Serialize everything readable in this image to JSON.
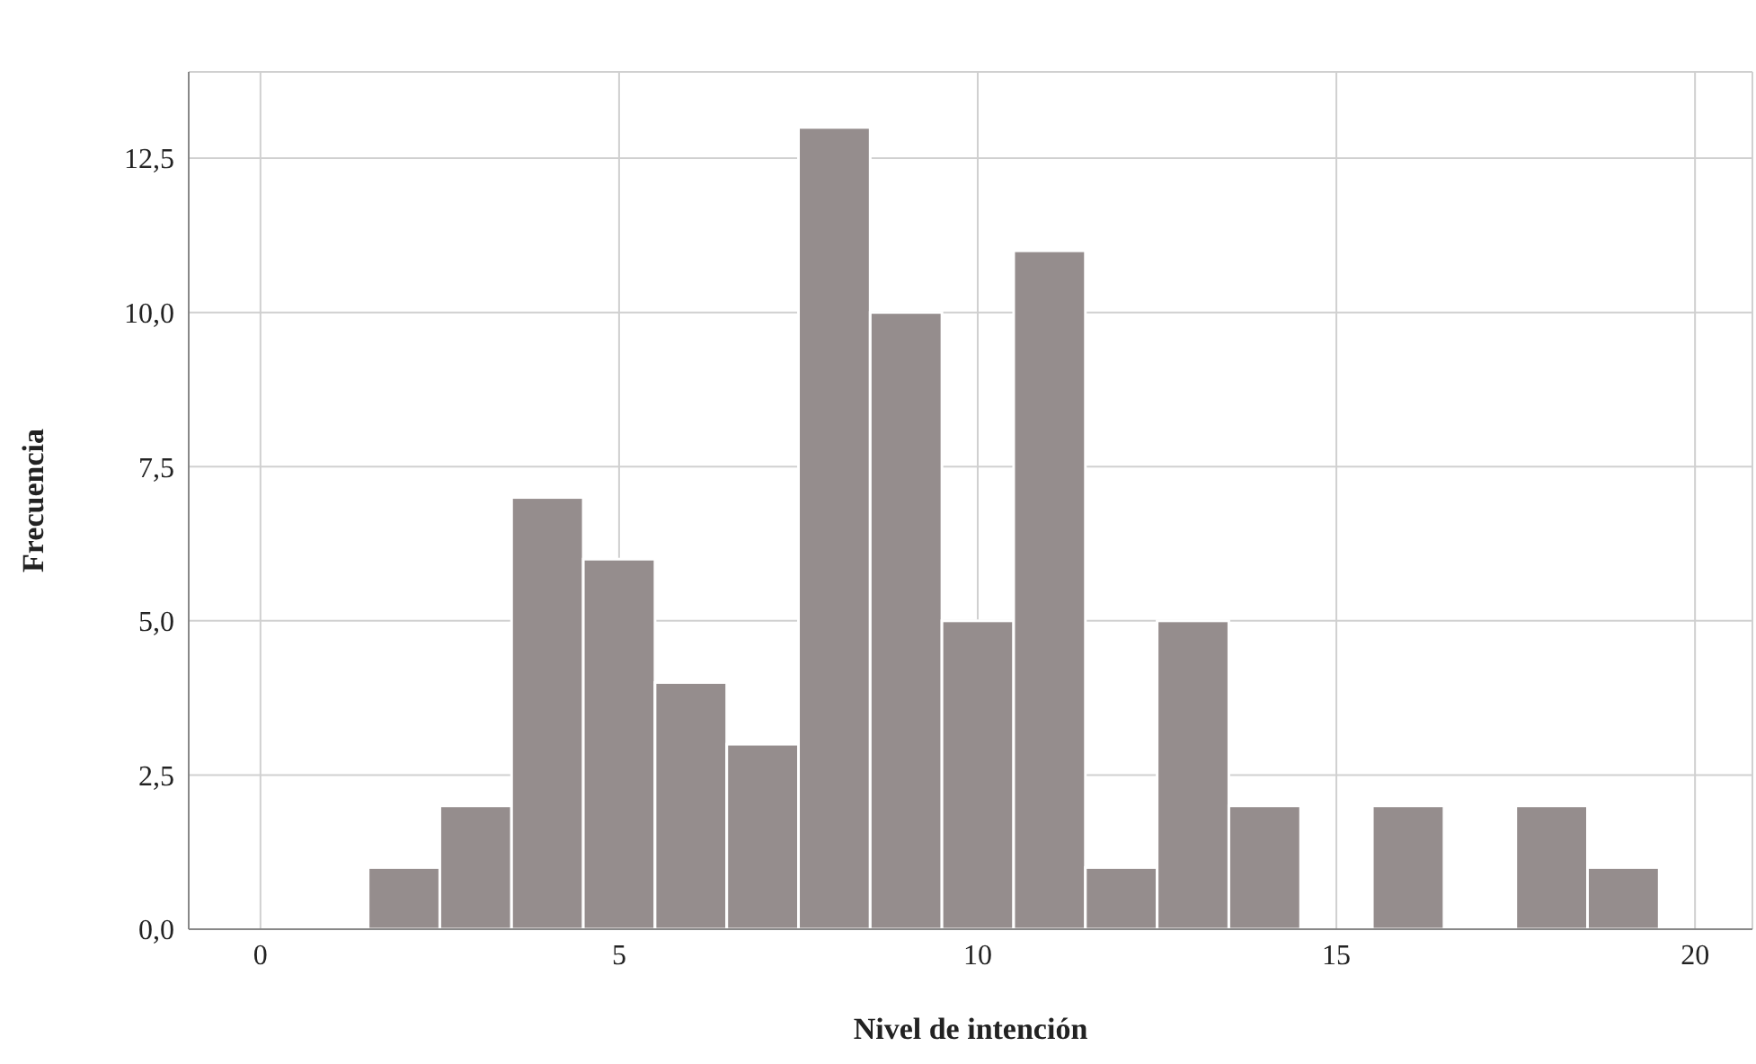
{
  "chart_data": {
    "type": "histogram",
    "xlabel": "Nivel de intención",
    "ylabel": "Frecuencia",
    "bins": [
      1.5,
      2.5,
      3.5,
      4.5,
      5.5,
      6.5,
      7.5,
      8.5,
      9.5,
      10.5,
      11.5,
      12.5,
      13.5,
      14.5,
      15.5,
      16.5,
      17.5,
      18.5,
      19.5
    ],
    "values": [
      1,
      2,
      7,
      6,
      4,
      3,
      13,
      10,
      5,
      11,
      1,
      5,
      2,
      0,
      2,
      0,
      2,
      1
    ],
    "color": "#958d8d",
    "xlim": [
      -1,
      20.8
    ],
    "xticks": [
      0,
      5,
      10,
      15,
      20
    ],
    "ylim": [
      0,
      13.9
    ],
    "yticks": [
      {
        "value": 0,
        "label": "0,0"
      },
      {
        "value": 2.5,
        "label": "2,5"
      },
      {
        "value": 5,
        "label": "5,0"
      },
      {
        "value": 7.5,
        "label": "7,5"
      },
      {
        "value": 10,
        "label": "10,0"
      },
      {
        "value": 12.5,
        "label": "12,5"
      }
    ],
    "grid": true
  }
}
